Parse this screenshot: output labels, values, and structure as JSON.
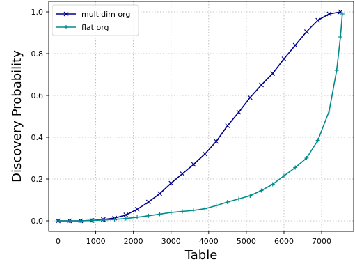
{
  "chart_data": {
    "type": "line",
    "xlabel": "Table",
    "ylabel": "Discovery Probability",
    "xlim": [
      -250,
      7850
    ],
    "ylim": [
      -0.05,
      1.05
    ],
    "xticks": [
      0,
      1000,
      2000,
      3000,
      4000,
      5000,
      6000,
      7000
    ],
    "xtick_labels": [
      "0",
      "1000",
      "2000",
      "3000",
      "4000",
      "5000",
      "6000",
      "7000"
    ],
    "yticks": [
      0.0,
      0.2,
      0.4,
      0.6,
      0.8,
      1.0
    ],
    "ytick_labels": [
      "0.0",
      "0.2",
      "0.4",
      "0.6",
      "0.8",
      "1.0"
    ],
    "grid": true,
    "legend_position": "top-left",
    "series": [
      {
        "name": "multidim org",
        "color": "#00008b",
        "marker": "x",
        "x": [
          0,
          300,
          600,
          900,
          1200,
          1500,
          1800,
          2100,
          2400,
          2700,
          3000,
          3300,
          3600,
          3900,
          4200,
          4500,
          4800,
          5100,
          5400,
          5700,
          6000,
          6300,
          6600,
          6900,
          7200,
          7500
        ],
        "y": [
          0.0,
          0.0,
          0.0,
          0.002,
          0.006,
          0.013,
          0.028,
          0.055,
          0.09,
          0.13,
          0.18,
          0.225,
          0.27,
          0.32,
          0.38,
          0.455,
          0.52,
          0.59,
          0.65,
          0.705,
          0.775,
          0.84,
          0.905,
          0.96,
          0.99,
          1.0
        ]
      },
      {
        "name": "flat org",
        "color": "#008b8b",
        "marker": "+",
        "x": [
          0,
          300,
          600,
          900,
          1200,
          1500,
          1800,
          2100,
          2400,
          2700,
          3000,
          3300,
          3600,
          3900,
          4200,
          4500,
          4800,
          5100,
          5400,
          5700,
          6000,
          6300,
          6600,
          6900,
          7200,
          7400,
          7500,
          7550
        ],
        "y": [
          0.0,
          0.0,
          0.0,
          0.002,
          0.004,
          0.007,
          0.011,
          0.017,
          0.024,
          0.032,
          0.04,
          0.045,
          0.05,
          0.058,
          0.073,
          0.09,
          0.105,
          0.12,
          0.145,
          0.175,
          0.215,
          0.255,
          0.3,
          0.385,
          0.525,
          0.72,
          0.88,
          0.99
        ]
      }
    ]
  }
}
